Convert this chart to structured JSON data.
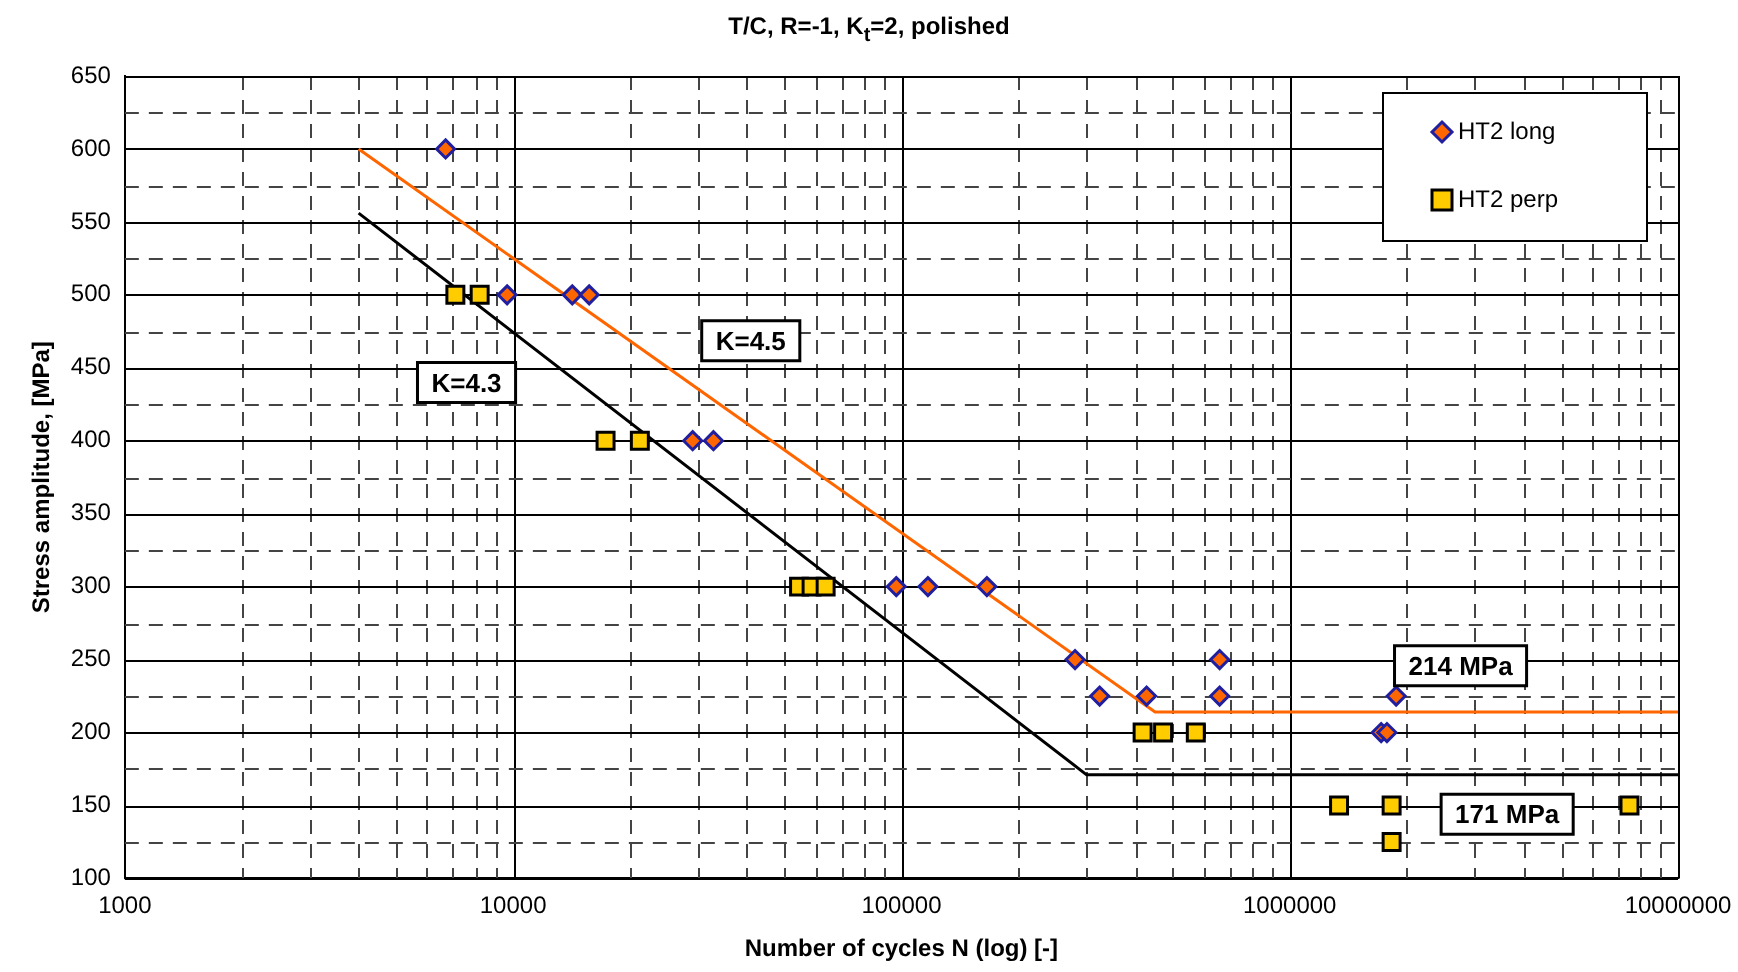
{
  "chart_data": {
    "type": "scatter",
    "title": "T/C, R=-1, K$_{t}$=2, polished",
    "xlabel": "Number of cycles N (log) [-]",
    "ylabel": "Stress amplitude, [MPa]",
    "log": "x",
    "grid": true,
    "legend": "top right",
    "xlim": [
      1000,
      10000000
    ],
    "xticks": [
      1000,
      {
        "value": 2000,
        "label": null
      },
      {
        "value": 3000,
        "label": null
      },
      {
        "value": 4000,
        "label": null
      },
      {
        "value": 5000,
        "label": null
      },
      {
        "value": 6000,
        "label": null
      },
      {
        "value": 7000,
        "label": null
      },
      {
        "value": 8000,
        "label": null
      },
      {
        "value": 9000,
        "label": null
      },
      10000,
      {
        "value": 20000,
        "label": null
      },
      {
        "value": 30000,
        "label": null
      },
      {
        "value": 40000,
        "label": null
      },
      {
        "value": 50000,
        "label": null
      },
      {
        "value": 60000,
        "label": null
      },
      {
        "value": 70000,
        "label": null
      },
      {
        "value": 80000,
        "label": null
      },
      {
        "value": 90000,
        "label": null
      },
      100000,
      {
        "value": 200000,
        "label": null
      },
      {
        "value": 300000,
        "label": null
      },
      {
        "value": 400000,
        "label": null
      },
      {
        "value": 500000,
        "label": null
      },
      {
        "value": 600000,
        "label": null
      },
      {
        "value": 700000,
        "label": null
      },
      {
        "value": 800000,
        "label": null
      },
      {
        "value": 900000,
        "label": null
      },
      1000000,
      {
        "value": 2000000,
        "label": null
      },
      {
        "value": 3000000,
        "label": null
      },
      {
        "value": 4000000,
        "label": null
      },
      {
        "value": 5000000,
        "label": null
      },
      {
        "value": 6000000,
        "label": null
      },
      {
        "value": 7000000,
        "label": null
      },
      {
        "value": 8000000,
        "label": null
      },
      {
        "value": 9000000,
        "label": null
      },
      10000000
    ],
    "ylim": [
      100,
      650
    ],
    "yticks": [
      100,
      {
        "value": 125,
        "label": null
      },
      150,
      {
        "value": 175,
        "label": null
      },
      200,
      {
        "value": 225,
        "label": null
      },
      250,
      {
        "value": 275,
        "label": null
      },
      300,
      {
        "value": 325,
        "label": null
      },
      350,
      {
        "value": 375,
        "label": null
      },
      400,
      {
        "value": 425,
        "label": null
      },
      450,
      {
        "value": 475,
        "label": null
      },
      500,
      {
        "value": 525,
        "label": null
      },
      550,
      {
        "value": 575,
        "label": null
      },
      600,
      {
        "value": 625,
        "label": null
      },
      650
    ],
    "series": [
      {
        "name": "HT2 long",
        "marker": "diamond",
        "color": "#ff6600",
        "x": [
          6700,
          9650,
          14200,
          15700,
          29000,
          32800,
          97000,
          117000,
          166000,
          280000,
          660000,
          324000,
          428000,
          660000,
          1880000,
          1720000,
          1780000
        ],
        "values": [
          600,
          500,
          500,
          500,
          400,
          400,
          300,
          300,
          300,
          250,
          250,
          225,
          225,
          225,
          225,
          200,
          200
        ]
      },
      {
        "name": "HT2 perp",
        "marker": "square",
        "color": "#ffcc00",
        "x": [
          7100,
          8200,
          17300,
          21200,
          54500,
          58700,
          63800,
          418000,
          472000,
          573000,
          1340000,
          1830000,
          7500000,
          1830000
        ],
        "values": [
          500,
          500,
          400,
          400,
          300,
          300,
          300,
          200,
          200,
          200,
          150,
          150,
          150,
          125
        ]
      },
      {
        "type": "line",
        "marker": "none",
        "color": "#ff6600",
        "x": [
          4000,
          450000,
          10000000
        ],
        "values": [
          600,
          214,
          214
        ]
      },
      {
        "type": "line",
        "marker": "none",
        "color": "#000000",
        "x": [
          4000,
          300000,
          10000000
        ],
        "values": [
          556,
          171,
          171
        ]
      }
    ],
    "annotations": [
      "K=4.5",
      "K=4.3",
      "214 MPa",
      "171 MPa"
    ]
  }
}
